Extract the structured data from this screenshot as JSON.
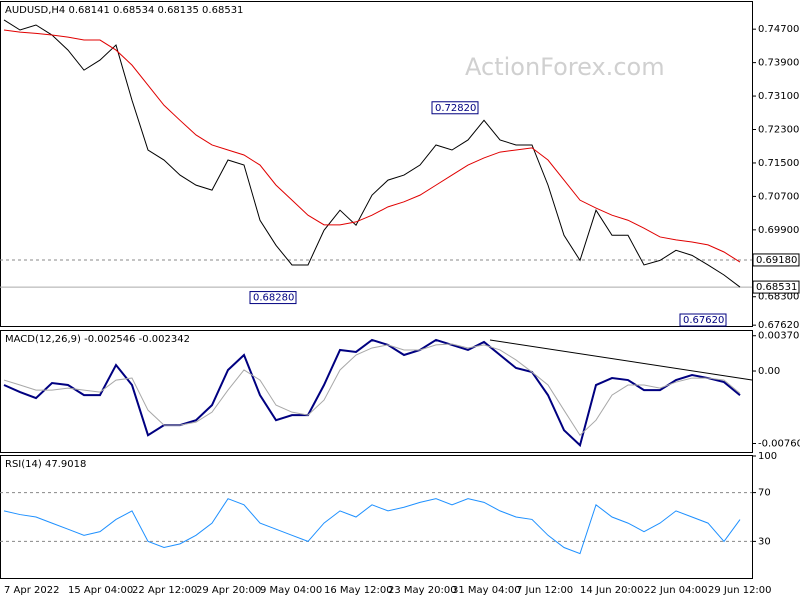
{
  "chart_data": [
    {
      "type": "line",
      "title": "AUDUSD,H4  0.68141 0.68534 0.68135 0.68531",
      "watermark": "ActionForex.com",
      "categories": [
        "7 Apr 2022",
        null,
        null,
        null,
        "15 Apr 04:00",
        null,
        null,
        null,
        "22 Apr 12:00",
        null,
        null,
        null,
        "29 Apr 20:00",
        null,
        null,
        null,
        "9 May 04:00",
        null,
        null,
        null,
        "16 May 12:00",
        null,
        null,
        null,
        "23 May 20:00",
        null,
        null,
        null,
        "31 May 04:00",
        null,
        null,
        null,
        "7 Jun 12:00",
        null,
        null,
        null,
        "14 Jun 20:00",
        null,
        null,
        null,
        "22 Jun 04:00",
        null,
        null,
        null,
        "29 Jun 12:00",
        null,
        null
      ],
      "series": [
        {
          "color": "#000000",
          "values": [
            0.7492,
            0.7468,
            0.748,
            0.7456,
            0.742,
            0.7372,
            0.7396,
            0.7432,
            0.73,
            0.7181,
            0.7157,
            0.7121,
            0.7097,
            0.7085,
            0.7157,
            0.7145,
            0.7013,
            0.6953,
            0.6906,
            0.6906,
            0.6989,
            0.7037,
            0.7001,
            0.7073,
            0.7109,
            0.7121,
            0.7145,
            0.7193,
            0.7181,
            0.7205,
            0.7252,
            0.7205,
            0.7193,
            0.7193,
            0.7097,
            0.6977,
            0.6917,
            0.7037,
            0.6977,
            0.6977,
            0.6906,
            0.6917,
            0.6941,
            0.6929,
            0.6906,
            0.6882,
            0.68531
          ]
        },
        {
          "color": "#e00000",
          "values": [
            0.7468,
            0.7463,
            0.746,
            0.7456,
            0.7451,
            0.7444,
            0.7444,
            0.742,
            0.7384,
            0.7336,
            0.7288,
            0.7252,
            0.7217,
            0.7193,
            0.7181,
            0.7169,
            0.7145,
            0.7097,
            0.7061,
            0.7025,
            0.7002,
            0.7002,
            0.7009,
            0.7025,
            0.7045,
            0.7057,
            0.7073,
            0.7097,
            0.7121,
            0.7145,
            0.7162,
            0.7176,
            0.7181,
            0.7186,
            0.7157,
            0.7109,
            0.7061,
            0.7042,
            0.7025,
            0.7013,
            0.6994,
            0.6973,
            0.6966,
            0.6961,
            0.6954,
            0.6937,
            0.6913
          ]
        }
      ],
      "ylim": [
        0.676,
        0.7535
      ],
      "yticks": [
        {
          "value": 0.747,
          "label": "0.74700"
        },
        {
          "value": 0.739,
          "label": "0.73900"
        },
        {
          "value": 0.731,
          "label": "0.73100"
        },
        {
          "value": 0.723,
          "label": "0.72300"
        },
        {
          "value": 0.715,
          "label": "0.71500"
        },
        {
          "value": 0.707,
          "label": "0.70700"
        },
        {
          "value": 0.699,
          "label": "0.69900"
        },
        {
          "value": 0.683,
          "label": "0.68300"
        },
        {
          "value": 0.6762,
          "label": "0.67620"
        }
      ],
      "levels": [
        {
          "value": 0.6918,
          "label": "0.69180"
        }
      ],
      "last_price": 0.68531,
      "annotations": [
        {
          "value": 0.7282,
          "label": "0.72820"
        },
        {
          "value": 0.6828,
          "label": "0.68280"
        },
        {
          "value": 0.6762,
          "label": "0.67620"
        }
      ]
    },
    {
      "type": "line",
      "title": "MACD(12,26,9) -0.002546 -0.002342",
      "series": [
        {
          "color": "#000080",
          "values": [
            -0.00147,
            -0.00221,
            -0.00284,
            -0.00126,
            -0.00147,
            -0.00253,
            -0.00253,
            0.00063,
            -0.00147,
            -0.00674,
            -0.00568,
            -0.00568,
            -0.00516,
            -0.00358,
            0.00011,
            0.00168,
            -0.00253,
            -0.00516,
            -0.00463,
            -0.00463,
            -0.00147,
            0.00221,
            0.002,
            0.00326,
            0.00274,
            0.00168,
            0.00221,
            0.00326,
            0.00274,
            0.00221,
            0.00305,
            0.00168,
            0.00032,
            -0.00011,
            -0.00253,
            -0.00621,
            -0.00779,
            -0.00147,
            -0.00074,
            -0.00095,
            -0.002,
            -0.002,
            -0.00095,
            -0.00042,
            -0.00074,
            -0.00116,
            -0.002546
          ]
        },
        {
          "color": "#a8a8a8",
          "values": [
            -0.00095,
            -0.00147,
            -0.002,
            -0.002,
            -0.00179,
            -0.002,
            -0.00221,
            -0.00095,
            -0.00074,
            -0.00411,
            -0.00568,
            -0.00568,
            -0.00537,
            -0.00432,
            -0.002,
            0.00011,
            -0.00095,
            -0.00358,
            -0.00432,
            -0.00463,
            -0.00305,
            0.00011,
            0.00168,
            0.00242,
            0.00274,
            0.00221,
            0.00221,
            0.00274,
            0.00284,
            0.00242,
            0.00274,
            0.00221,
            0.00116,
            -0.00011,
            -0.00147,
            -0.00411,
            -0.00674,
            -0.00516,
            -0.00253,
            -0.00147,
            -0.00147,
            -0.00179,
            -0.00116,
            -0.00074,
            -0.00074,
            -0.00095,
            -0.002342
          ]
        }
      ],
      "ylim": [
        -0.0085,
        0.0042
      ],
      "yticks": [
        0.003703,
        {
          "value": 0,
          "label": "0.00"
        },
        -0.007608
      ]
    },
    {
      "type": "line",
      "title": "RSI(14) 47.9018",
      "series": [
        {
          "color": "#1e90ff",
          "values": [
            55,
            52,
            50,
            45,
            40,
            35,
            38,
            48,
            55,
            30,
            25,
            28,
            35,
            45,
            65,
            60,
            45,
            40,
            35,
            30,
            45,
            55,
            50,
            60,
            55,
            58,
            62,
            65,
            60,
            65,
            62,
            55,
            50,
            48,
            35,
            25,
            20,
            60,
            50,
            45,
            38,
            45,
            55,
            50,
            45,
            30,
            47.9018
          ]
        }
      ],
      "ylim": [
        0,
        100
      ],
      "yticks": [
        100,
        70,
        30
      ],
      "levels": [
        70,
        30
      ]
    }
  ]
}
